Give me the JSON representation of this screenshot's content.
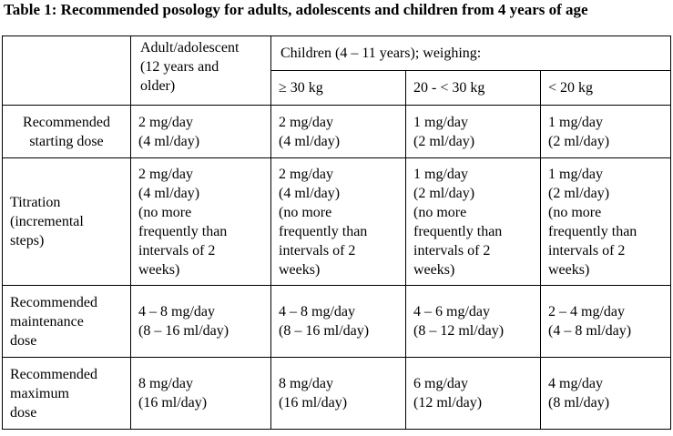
{
  "caption": "Table 1: Recommended posology for adults, adolescents and children from 4 years of age",
  "header": {
    "adult": [
      "Adult/adolescent",
      "(12 years and",
      "older)"
    ],
    "children_group": "Children (4 – 11 years); weighing:",
    "weights": [
      "≥ 30 kg",
      "20 - < 30 kg",
      "< 20 kg"
    ]
  },
  "rows": [
    {
      "label": [
        "Recommended",
        "starting dose"
      ],
      "cells": [
        [
          "2 mg/day",
          "(4 ml/day)"
        ],
        [
          "2 mg/day",
          "(4 ml/day)"
        ],
        [
          "1 mg/day",
          "(2 ml/day)"
        ],
        [
          "1 mg/day",
          "(2 ml/day)"
        ]
      ]
    },
    {
      "label": [
        "Titration",
        "(incremental",
        "steps)"
      ],
      "cells": [
        [
          "2 mg/day",
          "(4 ml/day)",
          "(no more",
          "frequently than",
          "intervals of 2",
          "weeks)"
        ],
        [
          "2 mg/day",
          "(4 ml/day)",
          "(no more",
          "frequently than",
          "intervals of 2",
          "weeks)"
        ],
        [
          "1 mg/day",
          "(2 ml/day)",
          "(no more",
          "frequently than",
          "intervals of 2",
          "weeks)"
        ],
        [
          "1 mg/day",
          "(2 ml/day)",
          "(no more",
          "frequently than",
          "intervals of 2",
          "weeks)"
        ]
      ]
    },
    {
      "label": [
        "Recommended",
        "maintenance",
        "dose"
      ],
      "cells": [
        [
          "4 – 8 mg/day",
          "(8 – 16 ml/day)"
        ],
        [
          "4 – 8 mg/day",
          "(8 – 16 ml/day)"
        ],
        [
          "4 – 6 mg/day",
          "(8 – 12 ml/day)"
        ],
        [
          "2 – 4 mg/day",
          "(4 – 8 ml/day)"
        ]
      ]
    },
    {
      "label": [
        "Recommended",
        "maximum",
        "dose"
      ],
      "cells": [
        [
          "8 mg/day",
          "(16 ml/day)"
        ],
        [
          "8 mg/day",
          "(16 ml/day)"
        ],
        [
          "6 mg/day",
          "(12 ml/day)"
        ],
        [
          "4 mg/day",
          "(8 ml/day)"
        ]
      ]
    }
  ]
}
